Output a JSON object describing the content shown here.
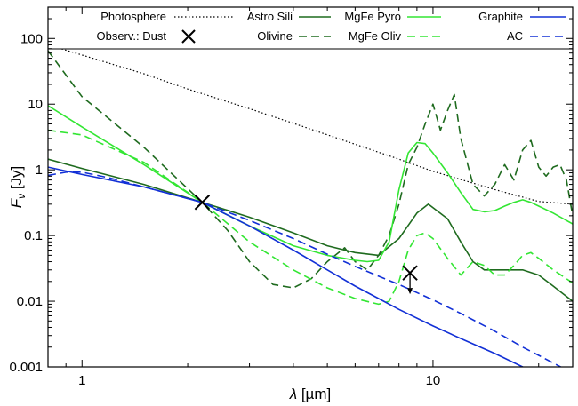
{
  "chart_data": {
    "type": "line",
    "title": "",
    "xlabel": "λ [µm]",
    "xlabel_parts": {
      "symbol": "λ",
      "units": "[µm]"
    },
    "ylabel": "Fν [Jy]",
    "ylabel_parts": {
      "symbol": "F",
      "sub": "ν",
      "units": "[Jy]"
    },
    "xscale": "log",
    "yscale": "log",
    "xlim": [
      0.8,
      25
    ],
    "ylim": [
      0.001,
      300
    ],
    "xticks": [
      {
        "value": 1,
        "label": "1"
      },
      {
        "value": 10,
        "label": "10"
      }
    ],
    "yticks": [
      {
        "value": 0.001,
        "label": "0.001"
      },
      {
        "value": 0.01,
        "label": "0.01"
      },
      {
        "value": 0.1,
        "label": "0.1"
      },
      {
        "value": 1,
        "label": "1"
      },
      {
        "value": 10,
        "label": "10"
      },
      {
        "value": 100,
        "label": "100"
      }
    ],
    "grid": false,
    "legend_placement": "top",
    "series": [
      {
        "name": "Photosphere",
        "color": "#000000",
        "dash": "dot",
        "x": [
          0.8,
          1,
          1.5,
          2,
          3,
          4,
          6,
          8,
          10,
          15,
          20,
          25
        ],
        "y": [
          80,
          56,
          29,
          17,
          8.5,
          5.1,
          2.45,
          1.45,
          0.95,
          0.5,
          0.33,
          0.3
        ]
      },
      {
        "name": "Astro Sili",
        "color": "#1f6b1f",
        "dash": "solid",
        "x": [
          0.8,
          1,
          1.5,
          2.2,
          3,
          4,
          5,
          6,
          7,
          8,
          9,
          9.7,
          11,
          12,
          13,
          14,
          16,
          18,
          20,
          22,
          25
        ],
        "y": [
          1.45,
          1.05,
          0.6,
          0.32,
          0.19,
          0.11,
          0.07,
          0.055,
          0.05,
          0.09,
          0.22,
          0.3,
          0.18,
          0.08,
          0.04,
          0.03,
          0.03,
          0.03,
          0.025,
          0.017,
          0.01
        ]
      },
      {
        "name": "Olivine",
        "color": "#1f6b1f",
        "dash": "dash",
        "x": [
          0.8,
          1,
          1.5,
          2.2,
          2.6,
          3,
          3.5,
          4,
          4.5,
          5,
          5.6,
          6,
          6.5,
          7,
          7.5,
          8,
          8.5,
          9,
          9.5,
          10,
          10.5,
          11,
          11.5,
          12,
          13,
          14,
          15,
          16,
          17,
          18,
          19,
          20,
          21,
          22,
          23,
          24,
          25
        ],
        "y": [
          65,
          13,
          2.2,
          0.32,
          0.12,
          0.04,
          0.018,
          0.016,
          0.022,
          0.04,
          0.065,
          0.04,
          0.03,
          0.05,
          0.1,
          0.3,
          1.2,
          2.2,
          5,
          10,
          4,
          8,
          14,
          3,
          0.6,
          0.4,
          0.6,
          1.2,
          0.7,
          2,
          2.8,
          1.1,
          0.8,
          1.1,
          1.2,
          0.7,
          0.2
        ]
      },
      {
        "name": "MgFe Pyro",
        "color": "#33e633",
        "dash": "solid",
        "x": [
          0.8,
          1,
          1.5,
          2.2,
          3,
          4,
          5,
          6,
          6.5,
          7,
          7.5,
          8,
          8.5,
          9,
          9.5,
          10,
          11,
          12,
          13,
          14,
          15,
          16,
          17,
          18,
          19,
          20,
          22,
          25
        ],
        "y": [
          9.5,
          4.5,
          1.2,
          0.32,
          0.14,
          0.07,
          0.05,
          0.042,
          0.04,
          0.042,
          0.08,
          0.5,
          1.8,
          2.6,
          2.5,
          1.8,
          0.9,
          0.45,
          0.25,
          0.23,
          0.24,
          0.28,
          0.32,
          0.35,
          0.32,
          0.28,
          0.22,
          0.15
        ]
      },
      {
        "name": "MgFe Oliv",
        "color": "#33e633",
        "dash": "dash",
        "x": [
          0.8,
          1,
          1.5,
          2.2,
          3,
          4,
          5,
          6,
          7,
          7.5,
          8,
          8.5,
          9,
          9.5,
          10,
          11,
          12,
          13,
          14,
          15,
          16,
          17,
          18,
          19,
          20,
          22,
          25
        ],
        "y": [
          4,
          3.4,
          1.3,
          0.32,
          0.08,
          0.03,
          0.016,
          0.011,
          0.009,
          0.01,
          0.02,
          0.06,
          0.1,
          0.11,
          0.09,
          0.045,
          0.025,
          0.04,
          0.035,
          0.025,
          0.025,
          0.035,
          0.05,
          0.055,
          0.045,
          0.03,
          0.019
        ]
      },
      {
        "name": "Graphite",
        "color": "#1230d6",
        "dash": "solid",
        "x": [
          0.8,
          1,
          1.5,
          2.2,
          3,
          4,
          5,
          6,
          7,
          8,
          10,
          12,
          15,
          18,
          20,
          25
        ],
        "y": [
          1.1,
          0.85,
          0.55,
          0.32,
          0.14,
          0.06,
          0.03,
          0.017,
          0.011,
          0.0075,
          0.0042,
          0.0027,
          0.0016,
          0.001,
          0.0008,
          0.0005
        ]
      },
      {
        "name": "AC",
        "color": "#1230d6",
        "dash": "dash",
        "x": [
          0.8,
          0.9,
          1,
          1.2,
          1.5,
          2.2,
          3,
          4,
          5,
          6,
          7,
          8,
          10,
          12,
          15,
          18,
          20,
          25
        ],
        "y": [
          0.82,
          0.92,
          0.92,
          0.75,
          0.55,
          0.32,
          0.17,
          0.09,
          0.052,
          0.034,
          0.024,
          0.018,
          0.0105,
          0.0065,
          0.0035,
          0.002,
          0.0015,
          0.0008
        ]
      }
    ],
    "points": [
      {
        "name": "Observ.: Dust",
        "marker": "x",
        "color": "#000000",
        "x": 2.2,
        "y": 0.32,
        "upper_limit": false
      },
      {
        "name": "Observ.: Dust",
        "marker": "x",
        "color": "#000000",
        "x": 8.6,
        "y": 0.027,
        "upper_limit": true
      }
    ],
    "legend": {
      "photosphere": "Photosphere",
      "observ_dust": "Observ.: Dust"
    }
  }
}
